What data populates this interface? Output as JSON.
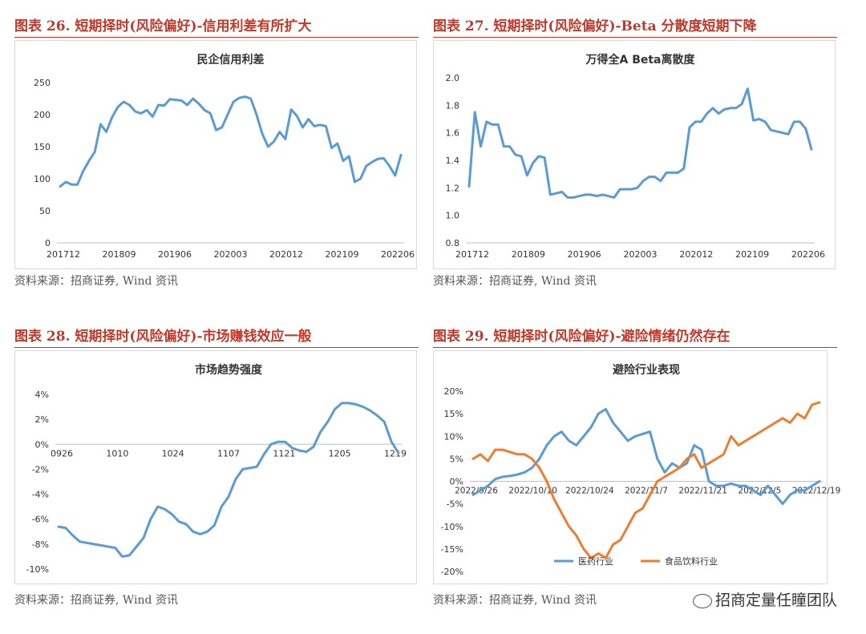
{
  "panels": [
    {
      "title": "图表 26. 短期择时(风险偏好)-信用利差有所扩大",
      "source": "资料来源：招商证券, Wind 资讯"
    },
    {
      "title": "图表 27. 短期择时(风险偏好)-Beta 分散度短期下降",
      "source": "资料来源：招商证券, Wind 资讯"
    },
    {
      "title": "图表 28. 短期择时(风险偏好)-市场赚钱效应一般",
      "source": "资料来源：招商证券, Wind 资讯"
    },
    {
      "title": "图表 29. 短期择时(风险偏好)-避险情绪仍然存在",
      "source": "资料来源：招商证券, Wind 资讯"
    }
  ],
  "watermark": "招商定量任瞳团队",
  "chart_data": [
    {
      "type": "line",
      "title": "民企信用利差",
      "x_ticks": [
        "201712",
        "201809",
        "201906",
        "202003",
        "202012",
        "202109",
        "202206"
      ],
      "y_ticks": [
        "0",
        "50",
        "100",
        "150",
        "200",
        "250"
      ],
      "ylim": [
        0,
        250
      ],
      "color": "#5b9bd5",
      "series": [
        {
          "values": [
            88,
            95,
            91,
            91,
            112,
            128,
            142,
            185,
            173,
            196,
            212,
            220,
            215,
            205,
            202,
            207,
            197,
            215,
            214,
            224,
            223,
            222,
            215,
            225,
            217,
            207,
            202,
            176,
            180,
            200,
            220,
            226,
            228,
            225,
            200,
            170,
            150,
            158,
            173,
            162,
            208,
            198,
            180,
            193,
            182,
            184,
            182,
            148,
            155,
            128,
            135,
            95,
            100,
            120,
            126,
            131,
            132,
            120,
            105,
            137
          ]
        }
      ]
    },
    {
      "type": "line",
      "title": "万得全A Beta离散度",
      "x_ticks": [
        "201712",
        "201809",
        "201906",
        "202003",
        "202012",
        "202109",
        "202206"
      ],
      "y_ticks": [
        "0.8",
        "1.0",
        "1.2",
        "1.4",
        "1.6",
        "1.8",
        "2.0"
      ],
      "ylim": [
        0.8,
        2.0
      ],
      "color": "#5b9bd5",
      "series": [
        {
          "values": [
            1.21,
            1.75,
            1.5,
            1.68,
            1.66,
            1.66,
            1.5,
            1.5,
            1.44,
            1.43,
            1.29,
            1.38,
            1.43,
            1.42,
            1.15,
            1.16,
            1.17,
            1.13,
            1.13,
            1.14,
            1.15,
            1.15,
            1.14,
            1.15,
            1.14,
            1.13,
            1.19,
            1.19,
            1.19,
            1.2,
            1.25,
            1.28,
            1.28,
            1.25,
            1.31,
            1.31,
            1.31,
            1.34,
            1.64,
            1.68,
            1.68,
            1.74,
            1.78,
            1.74,
            1.77,
            1.78,
            1.78,
            1.81,
            1.92,
            1.69,
            1.7,
            1.68,
            1.62,
            1.61,
            1.6,
            1.59,
            1.68,
            1.68,
            1.63,
            1.48
          ]
        }
      ]
    },
    {
      "type": "line",
      "title": "市场趋势强度",
      "x_ticks": [
        "0926",
        "1010",
        "1024",
        "1107",
        "1121",
        "1205",
        "1219"
      ],
      "y_ticks": [
        "-10%",
        "-8%",
        "-6%",
        "-4%",
        "-2%",
        "0%",
        "2%",
        "4%"
      ],
      "ylim": [
        -10,
        4
      ],
      "color": "#5b9bd5",
      "series": [
        {
          "values": [
            -6.6,
            -6.7,
            -7.3,
            -7.8,
            -7.9,
            -8,
            -8.1,
            -8.2,
            -8.3,
            -9,
            -8.9,
            -8.2,
            -7.5,
            -6,
            -5,
            -5.2,
            -5.6,
            -6.2,
            -6.4,
            -7,
            -7.2,
            -7,
            -6.5,
            -5,
            -4.2,
            -2.8,
            -2,
            -1.9,
            -1.8,
            -0.8,
            0,
            0.2,
            0.2,
            -0.3,
            -0.5,
            -0.6,
            -0.2,
            1,
            1.8,
            2.8,
            3.3,
            3.3,
            3.2,
            3,
            2.7,
            2.3,
            1.8,
            0.2,
            -0.7
          ]
        }
      ]
    },
    {
      "type": "line",
      "title": "避险行业表现",
      "x_ticks": [
        "2022/9/26",
        "2022/10/10",
        "2022/10/24",
        "2022/11/7",
        "2022/11/21",
        "2022/12/5",
        "2022/12/19"
      ],
      "y_ticks": [
        "-20%",
        "-15%",
        "-10%",
        "-5%",
        "0%",
        "5%",
        "10%",
        "15%",
        "20%"
      ],
      "ylim": [
        -20,
        20
      ],
      "legend": "bottom",
      "series": [
        {
          "name": "医药行业",
          "color": "#5b9bd5",
          "values": [
            -3,
            -2,
            -1,
            0.5,
            1,
            1.2,
            1.5,
            2,
            3,
            5,
            8,
            10,
            11,
            9,
            8,
            10,
            12,
            15,
            16,
            13,
            11,
            9,
            10,
            10.5,
            11,
            5,
            2,
            4,
            3,
            4,
            8,
            7,
            0,
            -1,
            -1,
            -0.5,
            -1,
            -1,
            -2,
            -3,
            -1,
            -3,
            -5,
            -3,
            -2,
            -2,
            -1,
            0
          ]
        },
        {
          "name": "食品饮料行业",
          "color": "#ed7d31",
          "values": [
            5,
            6,
            4.5,
            7,
            7,
            6.5,
            6,
            6,
            5,
            3,
            0,
            -4,
            -7,
            -10,
            -12,
            -15,
            -17,
            -16,
            -17,
            -14,
            -13,
            -10,
            -7,
            -6,
            -3,
            0,
            1,
            2,
            3,
            5,
            6,
            3,
            4,
            5,
            6,
            10,
            8,
            9,
            10,
            11,
            12,
            13,
            14,
            13,
            15,
            14,
            17,
            17.5
          ]
        }
      ]
    }
  ]
}
